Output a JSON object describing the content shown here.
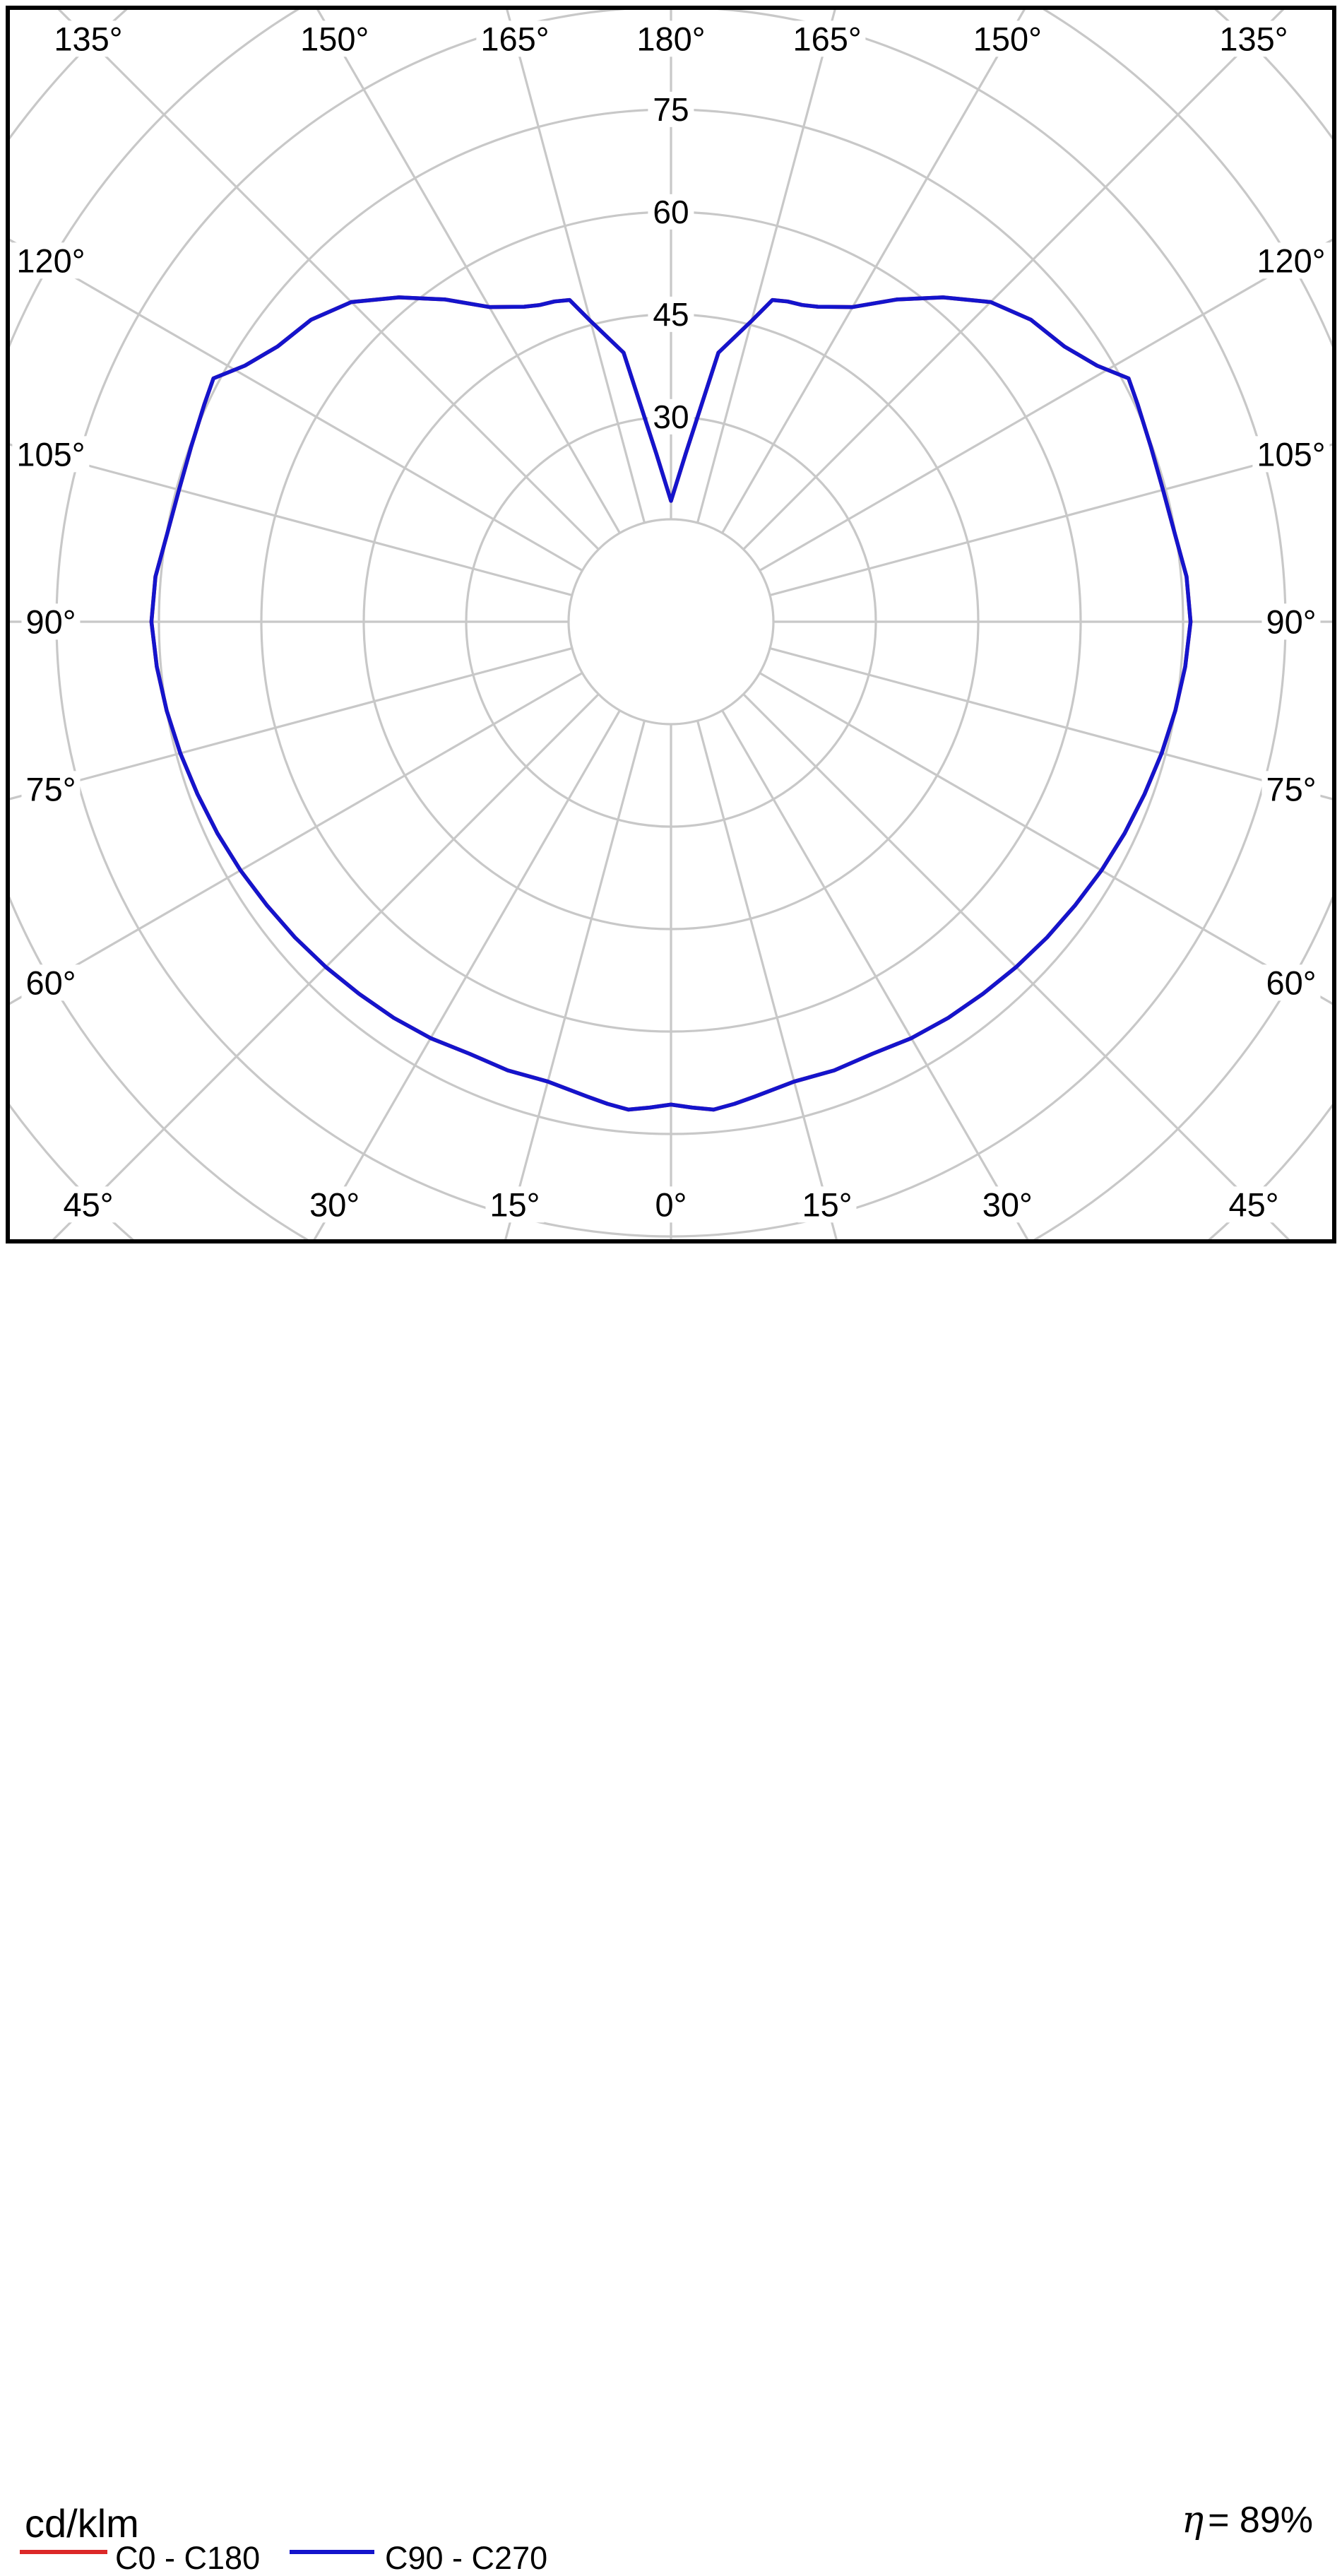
{
  "units_label": "cd/klm",
  "efficiency": {
    "symbol": "η",
    "rest": "= 89%",
    "value_percent": 89,
    "text": "η = 89%"
  },
  "legend": [
    {
      "label": "C0 - C180",
      "color": "#dc2828"
    },
    {
      "label": "C90 - C270",
      "color": "#1414cc"
    }
  ],
  "chart_data": {
    "type": "line",
    "polar": true,
    "title": "",
    "units": "cd/klm",
    "grid_color": "#c8c8c8",
    "frame_color": "#000000",
    "angle_step_deg": 15,
    "angle_labels": [
      "0°",
      "15°",
      "30°",
      "45°",
      "60°",
      "75°",
      "90°",
      "105°",
      "120°",
      "135°",
      "150°",
      "165°",
      "180°"
    ],
    "radial_ticks": [
      15,
      30,
      45,
      60,
      75,
      90,
      105,
      120
    ],
    "radial_tick_labels": [
      "30",
      "45",
      "60",
      "75"
    ],
    "r_axis_max": 120,
    "gamma_deg": [
      0,
      2.5,
      5,
      7.5,
      10,
      15,
      20,
      25,
      30,
      35,
      40,
      45,
      50,
      55,
      60,
      65,
      70,
      75,
      80,
      85,
      90,
      95,
      100,
      105,
      110,
      115,
      118,
      121,
      125,
      130,
      135,
      140,
      145,
      150,
      155,
      157.5,
      160,
      162.5,
      165,
      170,
      175,
      180
    ],
    "series": [
      {
        "name": "C0 - C180",
        "color": "#dc2828",
        "values": [
          70.7,
          71.2,
          71.7,
          71.2,
          70.6,
          69.7,
          69.9,
          69.8,
          70.4,
          70.8,
          71.1,
          71.5,
          71.9,
          72.3,
          72.8,
          73.3,
          73.8,
          74.4,
          75.0,
          75.6,
          76.1,
          75.8,
          74.9,
          74.6,
          74.8,
          75.4,
          75.9,
          72.8,
          70.3,
          68.8,
          66.2,
          62.0,
          57.6,
          53.2,
          50.9,
          50.2,
          49.9,
          49.4,
          45.6,
          40.0,
          24.7,
          17.7
        ]
      },
      {
        "name": "C90 - C270",
        "color": "#1414cc",
        "values": [
          70.7,
          71.2,
          71.7,
          71.2,
          70.6,
          69.7,
          69.9,
          69.8,
          70.4,
          70.8,
          71.1,
          71.5,
          71.9,
          72.3,
          72.8,
          73.3,
          73.8,
          74.4,
          75.0,
          75.6,
          76.1,
          75.8,
          74.9,
          74.6,
          74.8,
          75.4,
          75.9,
          72.8,
          70.3,
          68.8,
          66.2,
          62.0,
          57.6,
          53.2,
          50.9,
          50.2,
          49.9,
          49.4,
          45.6,
          40.0,
          24.7,
          17.7
        ]
      }
    ],
    "symmetric_left_right": true,
    "notes": "Polar luminous intensity distribution; 0° at bottom (nadir), 180° at top; values in cd/klm"
  }
}
